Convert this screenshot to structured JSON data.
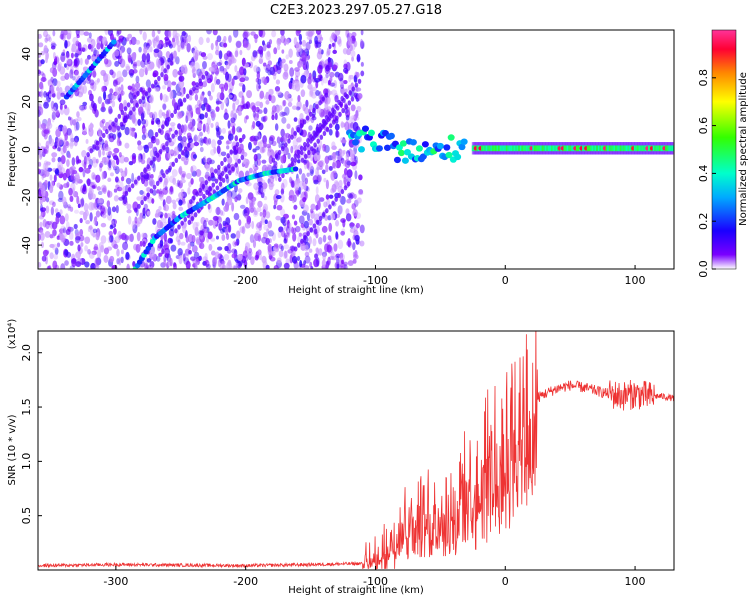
{
  "chart_data": [
    {
      "type": "heatmap",
      "title": "C2E3.2023.297.05.27.G18",
      "xlabel": "Height of straight line (km)",
      "ylabel": "Frequency (Hz)",
      "xlim": [
        -360,
        130
      ],
      "ylim": [
        -50,
        50
      ],
      "x_ticks": [
        -300,
        -200,
        -100,
        0,
        100
      ],
      "x_tick_labels": [
        "-300",
        "-200",
        "-100",
        "0",
        "100"
      ],
      "y_ticks": [
        -40,
        -20,
        0,
        20,
        40
      ],
      "y_tick_labels": [
        "-40",
        "-20",
        "0",
        "20",
        "40"
      ],
      "colorbar": {
        "label": "Normalized spectral amplitude",
        "range": [
          0,
          1
        ],
        "ticks": [
          0.0,
          0.2,
          0.4,
          0.6,
          0.8
        ],
        "tick_labels": [
          "0.0",
          "0.2",
          "0.4",
          "0.6",
          "0.8"
        ],
        "colormap": "rainbow (white-violet-blue-cyan-green-yellow-orange-red-magenta)"
      },
      "features": [
        {
          "desc": "rising ridge upper left",
          "points": [
            [
              -338,
              22
            ],
            [
              -322,
              32
            ],
            [
              -300,
              46
            ]
          ],
          "amplitude": 0.35
        },
        {
          "desc": "main rising ridge lower",
          "points": [
            [
              -285,
              -50
            ],
            [
              -270,
              -37
            ],
            [
              -250,
              -28
            ],
            [
              -225,
              -20
            ],
            [
              -205,
              -13
            ],
            [
              -185,
              -10
            ],
            [
              -160,
              -8
            ]
          ],
          "amplitude": 0.4
        },
        {
          "desc": "turbulent band",
          "points": [
            [
              -120,
              6
            ],
            [
              -100,
              3
            ],
            [
              -80,
              0
            ],
            [
              -60,
              -2
            ],
            [
              -45,
              0
            ],
            [
              -30,
              2
            ]
          ],
          "amplitude": 0.45
        },
        {
          "desc": "steady carrier near 0 Hz",
          "points": [
            [
              -25,
              0.5
            ],
            [
              0,
              0.5
            ],
            [
              60,
              0.5
            ],
            [
              130,
              0.5
            ]
          ],
          "amplitude": 0.9
        }
      ]
    },
    {
      "type": "line",
      "xlabel": "Height of straight line (km)",
      "ylabel": "SNR (10 * v/v)",
      "y_scale_note": "(x10⁴)",
      "xlim": [
        -360,
        130
      ],
      "ylim": [
        0,
        2.2
      ],
      "x_ticks": [
        -300,
        -200,
        -100,
        0,
        100
      ],
      "x_tick_labels": [
        "-300",
        "-200",
        "-100",
        "0",
        "100"
      ],
      "y_ticks": [
        0.5,
        1.0,
        1.5,
        2.0
      ],
      "y_tick_labels": [
        "0.5",
        "1.0",
        "1.5",
        "2.0"
      ],
      "color": "#ee3333",
      "series": [
        {
          "x": [
            -360,
            -300,
            -200,
            -150,
            -110,
            -100,
            -90,
            -80,
            -70,
            -60,
            -50,
            -40,
            -30,
            -20,
            -10,
            0,
            10,
            20,
            30,
            40,
            50,
            60,
            70,
            80,
            90,
            100,
            110,
            120,
            130
          ],
          "y": [
            0.04,
            0.05,
            0.04,
            0.05,
            0.06,
            0.08,
            0.2,
            0.5,
            0.45,
            0.5,
            0.6,
            0.55,
            0.8,
            0.75,
            1.2,
            1.15,
            1.3,
            1.55,
            1.62,
            1.67,
            1.7,
            1.68,
            1.65,
            1.62,
            1.6,
            1.62,
            1.6,
            1.6,
            1.58
          ]
        }
      ]
    }
  ]
}
